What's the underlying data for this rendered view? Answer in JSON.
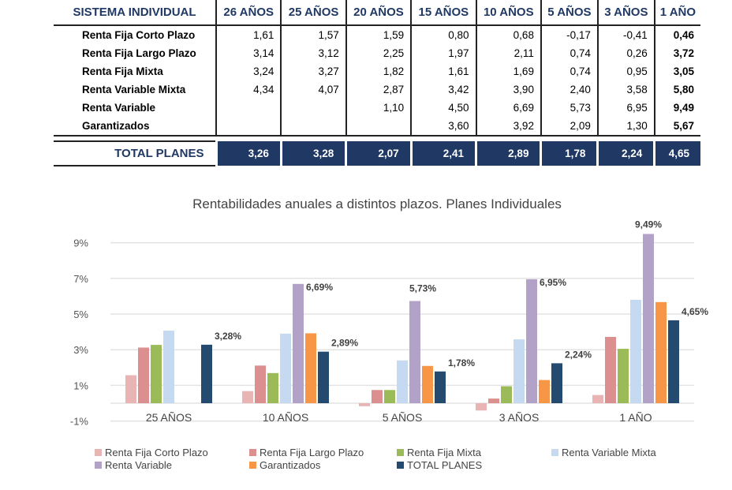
{
  "table": {
    "header": [
      "SISTEMA INDIVIDUAL",
      "26 AÑOS",
      "25 AÑOS",
      "20 AÑOS",
      "15 AÑOS",
      "10 AÑOS",
      "5 AÑOS",
      "3 AÑOS",
      "1 AÑO"
    ],
    "rows": [
      {
        "label": "Renta Fija Corto Plazo",
        "values": [
          "1,61",
          "1,57",
          "1,59",
          "0,80",
          "0,68",
          "-0,17",
          "-0,41",
          "0,46"
        ]
      },
      {
        "label": "Renta Fija Largo Plazo",
        "values": [
          "3,14",
          "3,12",
          "2,25",
          "1,97",
          "2,11",
          "0,74",
          "0,26",
          "3,72"
        ]
      },
      {
        "label": "Renta Fija Mixta",
        "values": [
          "3,24",
          "3,27",
          "1,82",
          "1,61",
          "1,69",
          "0,74",
          "0,95",
          "3,05"
        ]
      },
      {
        "label": "Renta Variable Mixta",
        "values": [
          "4,34",
          "4,07",
          "2,87",
          "3,42",
          "3,90",
          "2,40",
          "3,58",
          "5,80"
        ]
      },
      {
        "label": "Renta Variable",
        "values": [
          "",
          "",
          "1,10",
          "4,50",
          "6,69",
          "5,73",
          "6,95",
          "9,49"
        ]
      },
      {
        "label": "Garantizados",
        "values": [
          "",
          "",
          "",
          "3,60",
          "3,92",
          "2,09",
          "1,30",
          "5,67"
        ]
      }
    ],
    "total": {
      "label": "TOTAL PLANES",
      "values": [
        "3,26",
        "3,28",
        "2,07",
        "2,41",
        "2,89",
        "1,78",
        "2,24",
        "4,65"
      ]
    }
  },
  "chart_data": {
    "type": "bar",
    "title": "Rentabilidades anuales a distintos plazos. Planes Individuales",
    "categories": [
      "25 AÑOS",
      "10 AÑOS",
      "5 AÑOS",
      "3 AÑOS",
      "1 AÑO"
    ],
    "ylim": [
      -1,
      9.5
    ],
    "yticks": [
      9,
      7,
      5,
      3,
      1,
      -1
    ],
    "ytick_labels": [
      "9%",
      "7%",
      "5%",
      "3%",
      "1%",
      "-1%"
    ],
    "grid": true,
    "legend": "bottom",
    "series": [
      {
        "name": "Renta Fija Corto Plazo",
        "color": "#e8b4b4",
        "values": [
          1.57,
          0.68,
          -0.17,
          -0.41,
          0.46
        ]
      },
      {
        "name": "Renta Fija Largo Plazo",
        "color": "#db8f8f",
        "values": [
          3.12,
          2.11,
          0.74,
          0.26,
          3.72
        ]
      },
      {
        "name": "Renta Fija Mixta",
        "color": "#9bbb59",
        "values": [
          3.27,
          1.69,
          0.74,
          0.95,
          3.05
        ]
      },
      {
        "name": "Renta Variable Mixta",
        "color": "#c5d9f1",
        "values": [
          4.07,
          3.9,
          2.4,
          3.58,
          5.8
        ]
      },
      {
        "name": "Renta Variable",
        "color": "#b3a2c7",
        "values": [
          null,
          6.69,
          5.73,
          6.95,
          9.49
        ],
        "labels": [
          "",
          "6,69%",
          "5,73%",
          "6,95%",
          "9,49%"
        ]
      },
      {
        "name": "Garantizados",
        "color": "#f79646",
        "values": [
          null,
          3.92,
          2.09,
          1.3,
          5.67
        ]
      },
      {
        "name": "TOTAL PLANES",
        "color": "#244a70",
        "values": [
          3.28,
          2.89,
          1.78,
          2.24,
          4.65
        ],
        "labels": [
          "3,28%",
          "2,89%",
          "1,78%",
          "2,24%",
          "4,65%"
        ]
      }
    ]
  }
}
